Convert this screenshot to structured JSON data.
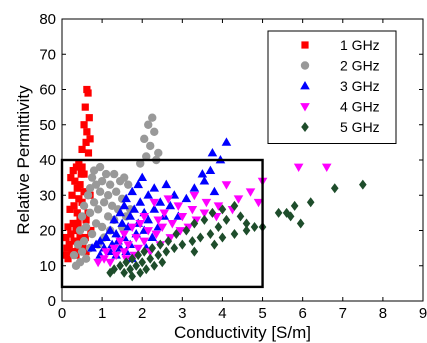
{
  "chart_data": {
    "type": "scatter",
    "xlabel": "Conductivity [S/m]",
    "ylabel": "Relative Permittivity",
    "xlim": [
      0,
      9
    ],
    "ylim": [
      0,
      80
    ],
    "xticks": [
      "0",
      "1",
      "2",
      "3",
      "4",
      "5",
      "6",
      "7",
      "8",
      "9"
    ],
    "yticks": [
      "0",
      "10",
      "20",
      "30",
      "40",
      "50",
      "60",
      "70",
      "80"
    ],
    "grid": false,
    "legend_position": "top-right",
    "highlight_box": {
      "x": [
        0,
        5
      ],
      "y": [
        4,
        40
      ]
    },
    "series": [
      {
        "name": "1 GHz",
        "marker": "square",
        "color": "#ff0000",
        "points": [
          [
            0.62,
            60
          ],
          [
            0.65,
            59
          ],
          [
            0.58,
            55
          ],
          [
            0.68,
            52
          ],
          [
            0.55,
            50
          ],
          [
            0.62,
            48
          ],
          [
            0.7,
            46
          ],
          [
            0.6,
            45
          ],
          [
            0.5,
            43
          ],
          [
            0.66,
            42
          ],
          [
            0.36,
            38
          ],
          [
            0.42,
            39
          ],
          [
            0.5,
            38
          ],
          [
            0.28,
            37
          ],
          [
            0.48,
            36
          ],
          [
            0.22,
            35
          ],
          [
            0.55,
            36
          ],
          [
            0.32,
            34
          ],
          [
            0.45,
            33
          ],
          [
            0.38,
            32
          ],
          [
            0.55,
            31
          ],
          [
            0.25,
            30
          ],
          [
            0.42,
            29
          ],
          [
            0.5,
            28
          ],
          [
            0.3,
            27
          ],
          [
            0.2,
            26
          ],
          [
            0.38,
            25
          ],
          [
            0.45,
            24
          ],
          [
            0.6,
            23
          ],
          [
            0.28,
            22
          ],
          [
            0.15,
            21
          ],
          [
            0.35,
            20
          ],
          [
            0.22,
            19
          ],
          [
            0.45,
            18
          ],
          [
            0.1,
            18
          ],
          [
            0.3,
            17
          ],
          [
            0.52,
            16
          ],
          [
            0.18,
            16
          ],
          [
            0.12,
            15
          ],
          [
            0.4,
            15
          ],
          [
            0.25,
            14
          ],
          [
            0.08,
            13
          ],
          [
            0.35,
            13
          ],
          [
            0.6,
            14
          ],
          [
            0.15,
            12
          ],
          [
            0.7,
            30
          ],
          [
            0.65,
            25
          ],
          [
            0.72,
            20
          ],
          [
            0.58,
            18
          ],
          [
            0.4,
            22
          ]
        ]
      },
      {
        "name": "2 GHz",
        "marker": "circle",
        "color": "#999999",
        "points": [
          [
            2.25,
            52
          ],
          [
            2.15,
            50
          ],
          [
            2.3,
            48
          ],
          [
            2.05,
            46
          ],
          [
            2.2,
            44
          ],
          [
            2.4,
            42
          ],
          [
            2.1,
            41
          ],
          [
            2.35,
            40
          ],
          [
            1.95,
            39
          ],
          [
            0.95,
            38
          ],
          [
            0.8,
            37
          ],
          [
            1.1,
            36
          ],
          [
            0.75,
            35
          ],
          [
            1.3,
            36
          ],
          [
            1.55,
            35
          ],
          [
            1.0,
            34
          ],
          [
            1.45,
            34
          ],
          [
            0.85,
            33
          ],
          [
            1.2,
            33
          ],
          [
            1.65,
            33
          ],
          [
            0.7,
            32
          ],
          [
            0.95,
            31
          ],
          [
            1.35,
            31
          ],
          [
            1.15,
            30
          ],
          [
            0.65,
            30
          ],
          [
            1.5,
            29
          ],
          [
            0.8,
            28
          ],
          [
            1.05,
            28
          ],
          [
            1.25,
            27
          ],
          [
            0.55,
            27
          ],
          [
            0.9,
            26
          ],
          [
            1.4,
            26
          ],
          [
            0.7,
            25
          ],
          [
            1.15,
            24
          ],
          [
            0.5,
            24
          ],
          [
            1.3,
            23
          ],
          [
            0.85,
            22
          ],
          [
            1.0,
            21
          ],
          [
            0.6,
            21
          ],
          [
            1.2,
            20
          ],
          [
            0.45,
            20
          ],
          [
            0.75,
            19
          ],
          [
            1.05,
            18
          ],
          [
            0.55,
            17
          ],
          [
            0.9,
            16
          ],
          [
            0.4,
            16
          ],
          [
            0.7,
            15
          ],
          [
            0.5,
            14
          ],
          [
            0.3,
            13
          ],
          [
            0.6,
            12
          ],
          [
            0.45,
            11
          ],
          [
            0.35,
            10
          ],
          [
            1.6,
            24
          ],
          [
            1.7,
            26
          ],
          [
            1.5,
            21
          ]
        ]
      },
      {
        "name": "3 GHz",
        "marker": "triangle",
        "color": "#0000ff",
        "points": [
          [
            4.1,
            45
          ],
          [
            3.75,
            42
          ],
          [
            3.95,
            40
          ],
          [
            3.7,
            37
          ],
          [
            3.5,
            36
          ],
          [
            2.0,
            35
          ],
          [
            3.55,
            34
          ],
          [
            1.9,
            33
          ],
          [
            2.6,
            33
          ],
          [
            3.3,
            32
          ],
          [
            2.3,
            32
          ],
          [
            3.8,
            31
          ],
          [
            1.75,
            31
          ],
          [
            2.15,
            30
          ],
          [
            2.8,
            30
          ],
          [
            1.6,
            29
          ],
          [
            3.1,
            29
          ],
          [
            1.95,
            28
          ],
          [
            2.45,
            28
          ],
          [
            1.55,
            27
          ],
          [
            2.7,
            27
          ],
          [
            1.8,
            26
          ],
          [
            2.3,
            26
          ],
          [
            2.05,
            25
          ],
          [
            1.45,
            25
          ],
          [
            2.55,
            24
          ],
          [
            1.7,
            24
          ],
          [
            2.9,
            24
          ],
          [
            1.3,
            23
          ],
          [
            2.15,
            23
          ],
          [
            1.9,
            22
          ],
          [
            1.5,
            22
          ],
          [
            2.4,
            21
          ],
          [
            1.65,
            21
          ],
          [
            1.2,
            20
          ],
          [
            2.05,
            20
          ],
          [
            1.35,
            19
          ],
          [
            1.85,
            19
          ],
          [
            1.1,
            18
          ],
          [
            1.55,
            18
          ],
          [
            0.95,
            17
          ],
          [
            1.4,
            17
          ],
          [
            1.25,
            16
          ],
          [
            0.85,
            16
          ],
          [
            1.7,
            16
          ],
          [
            1.05,
            15
          ],
          [
            0.75,
            15
          ],
          [
            1.45,
            15
          ],
          [
            1.2,
            14
          ],
          [
            0.95,
            13
          ],
          [
            1.6,
            14
          ],
          [
            1.35,
            13
          ],
          [
            2.25,
            18
          ],
          [
            2.1,
            15
          ],
          [
            1.75,
            12
          ]
        ]
      },
      {
        "name": "4 GHz",
        "marker": "triangle-down",
        "color": "#ff00ff",
        "points": [
          [
            6.6,
            38
          ],
          [
            5.9,
            38
          ],
          [
            5.0,
            34
          ],
          [
            4.1,
            33
          ],
          [
            4.7,
            31
          ],
          [
            3.3,
            30
          ],
          [
            2.65,
            29
          ],
          [
            4.4,
            29
          ],
          [
            3.6,
            28
          ],
          [
            2.3,
            28
          ],
          [
            4.9,
            28
          ],
          [
            3.9,
            27
          ],
          [
            2.9,
            27
          ],
          [
            3.25,
            26
          ],
          [
            4.25,
            26
          ],
          [
            2.55,
            25
          ],
          [
            3.55,
            25
          ],
          [
            2.05,
            24
          ],
          [
            3.0,
            24
          ],
          [
            3.85,
            24
          ],
          [
            2.4,
            23
          ],
          [
            3.35,
            23
          ],
          [
            1.95,
            22
          ],
          [
            2.75,
            22
          ],
          [
            3.15,
            21
          ],
          [
            1.75,
            21
          ],
          [
            2.5,
            21
          ],
          [
            2.15,
            20
          ],
          [
            2.95,
            20
          ],
          [
            1.55,
            19
          ],
          [
            2.35,
            19
          ],
          [
            1.85,
            18
          ],
          [
            2.7,
            18
          ],
          [
            1.45,
            17
          ],
          [
            2.05,
            17
          ],
          [
            1.65,
            16
          ],
          [
            2.45,
            16
          ],
          [
            1.3,
            15
          ],
          [
            1.9,
            15
          ],
          [
            1.1,
            14
          ],
          [
            1.55,
            14
          ],
          [
            2.2,
            14
          ],
          [
            1.35,
            13
          ],
          [
            1.05,
            12
          ],
          [
            1.8,
            13
          ],
          [
            1.2,
            11
          ],
          [
            1.6,
            12
          ],
          [
            0.9,
            11
          ]
        ]
      },
      {
        "name": "5 GHz",
        "marker": "diamond",
        "color": "#1e4d2b",
        "points": [
          [
            7.5,
            33
          ],
          [
            6.8,
            32
          ],
          [
            6.2,
            28
          ],
          [
            5.8,
            27
          ],
          [
            5.6,
            25
          ],
          [
            5.4,
            25
          ],
          [
            5.7,
            24
          ],
          [
            5.95,
            22
          ],
          [
            4.6,
            22
          ],
          [
            5.0,
            21
          ],
          [
            4.8,
            21
          ],
          [
            4.3,
            27
          ],
          [
            4.0,
            26
          ],
          [
            3.75,
            25
          ],
          [
            4.45,
            24
          ],
          [
            3.55,
            23
          ],
          [
            4.1,
            23
          ],
          [
            3.3,
            22
          ],
          [
            3.9,
            21
          ],
          [
            4.6,
            20
          ],
          [
            3.1,
            20
          ],
          [
            3.7,
            19
          ],
          [
            4.3,
            19
          ],
          [
            2.85,
            19
          ],
          [
            3.45,
            18
          ],
          [
            4.0,
            18
          ],
          [
            2.65,
            17
          ],
          [
            3.25,
            17
          ],
          [
            2.45,
            16
          ],
          [
            3.0,
            16
          ],
          [
            3.8,
            16
          ],
          [
            2.25,
            15
          ],
          [
            2.8,
            15
          ],
          [
            2.05,
            14
          ],
          [
            2.6,
            14
          ],
          [
            3.3,
            14
          ],
          [
            1.9,
            13
          ],
          [
            2.4,
            13
          ],
          [
            1.75,
            12
          ],
          [
            2.2,
            12
          ],
          [
            1.6,
            11
          ],
          [
            2.0,
            11
          ],
          [
            2.5,
            11
          ],
          [
            1.45,
            10
          ],
          [
            1.85,
            10
          ],
          [
            2.3,
            10
          ],
          [
            1.3,
            9
          ],
          [
            1.7,
            9
          ],
          [
            2.1,
            9
          ],
          [
            1.55,
            8
          ],
          [
            1.95,
            8
          ],
          [
            1.2,
            8
          ],
          [
            1.75,
            7
          ]
        ]
      }
    ]
  }
}
